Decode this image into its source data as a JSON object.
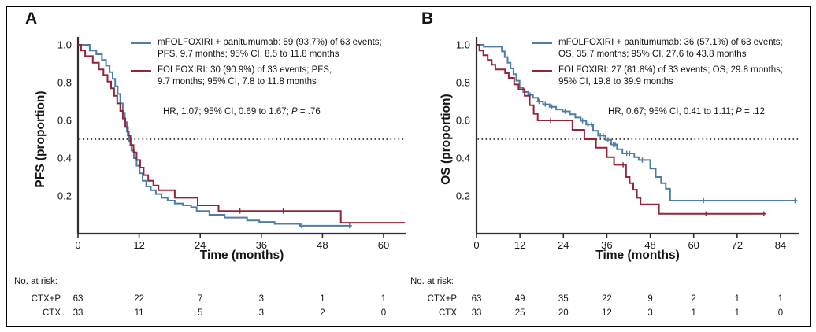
{
  "chart_data": [
    {
      "type": "line",
      "subtype": "kaplan-meier-step",
      "panel_label": "A",
      "xlabel": "Time (months)",
      "ylabel": "PFS (proportion)",
      "xticks": [
        0,
        12,
        24,
        36,
        48,
        60
      ],
      "yticks": [
        "1.0",
        "0.8",
        "0.6",
        "0.4",
        "0.2"
      ],
      "ytick_values": [
        1.0,
        0.8,
        0.6,
        0.4,
        0.2
      ],
      "xlim": [
        0,
        64
      ],
      "ylim": [
        0,
        1.0
      ],
      "grid": false,
      "reference_line_y": 0.5,
      "legend_position": "top-right-inside",
      "annotation": {
        "prefix": "HR, 1.07; 95% CI, 0.69 to 1.67; ",
        "italic": "P",
        "suffix": " = .76"
      },
      "series": [
        {
          "name": "mFOLFOXIRI + panitumumab",
          "color": "#4e7da6",
          "label_lines": [
            "mFOLFOXIRI + panitumumab: 59 (93.7%) of 63 events;",
            "PFS, 9.7 months; 95% CI, 8.5 to 11.8 months"
          ],
          "points": [
            [
              0,
              1.0
            ],
            [
              2.3,
              0.97
            ],
            [
              3.6,
              0.95
            ],
            [
              4.7,
              0.92
            ],
            [
              5.5,
              0.89
            ],
            [
              6.2,
              0.855
            ],
            [
              6.8,
              0.82
            ],
            [
              7.3,
              0.78
            ],
            [
              7.8,
              0.74
            ],
            [
              8.3,
              0.69
            ],
            [
              8.8,
              0.64
            ],
            [
              9.2,
              0.59
            ],
            [
              9.6,
              0.54
            ],
            [
              10.0,
              0.49
            ],
            [
              10.5,
              0.44
            ],
            [
              11.0,
              0.4
            ],
            [
              11.5,
              0.36
            ],
            [
              12.1,
              0.32
            ],
            [
              12.7,
              0.28
            ],
            [
              13.4,
              0.25
            ],
            [
              14.3,
              0.23
            ],
            [
              15.3,
              0.21
            ],
            [
              16.4,
              0.19
            ],
            [
              17.6,
              0.175
            ],
            [
              19.0,
              0.16
            ],
            [
              20.6,
              0.15
            ],
            [
              22.2,
              0.14
            ],
            [
              23.3,
              0.12
            ],
            [
              25.8,
              0.1
            ],
            [
              28.8,
              0.085
            ],
            [
              33.2,
              0.07
            ],
            [
              35.6,
              0.062
            ],
            [
              38.6,
              0.052
            ],
            [
              43.6,
              0.042
            ],
            [
              53.3,
              0.042
            ]
          ],
          "censors": [
            [
              43.9,
              0.042
            ],
            [
              53.3,
              0.042
            ]
          ]
        },
        {
          "name": "FOLFOXIRI",
          "color": "#91263a",
          "label_lines": [
            "FOLFOXIRI: 30 (90.9%) of 33 events; PFS,",
            "9.7 months; 95% CI, 7.8 to 11.8 months"
          ],
          "points": [
            [
              0,
              1.0
            ],
            [
              0.6,
              0.97
            ],
            [
              1.4,
              0.94
            ],
            [
              2.9,
              0.905
            ],
            [
              4.1,
              0.87
            ],
            [
              5.0,
              0.84
            ],
            [
              5.8,
              0.805
            ],
            [
              6.5,
              0.77
            ],
            [
              7.1,
              0.73
            ],
            [
              7.7,
              0.69
            ],
            [
              8.3,
              0.65
            ],
            [
              8.8,
              0.61
            ],
            [
              9.3,
              0.565
            ],
            [
              9.8,
              0.52
            ],
            [
              10.3,
              0.47
            ],
            [
              10.9,
              0.43
            ],
            [
              11.5,
              0.39
            ],
            [
              12.2,
              0.35
            ],
            [
              12.9,
              0.31
            ],
            [
              13.8,
              0.28
            ],
            [
              14.8,
              0.255
            ],
            [
              15.8,
              0.23
            ],
            [
              19.0,
              0.19
            ],
            [
              23.5,
              0.15
            ],
            [
              27.6,
              0.12
            ],
            [
              51.6,
              0.058
            ],
            [
              64.2,
              0.058
            ]
          ],
          "censors": [
            [
              31.8,
              0.12
            ],
            [
              40.3,
              0.12
            ]
          ]
        }
      ],
      "at_risk": {
        "title": "No. at risk:",
        "rows": [
          {
            "label": "CTX+P",
            "values": [
              "63",
              "22",
              "7",
              "3",
              "1",
              "1"
            ]
          },
          {
            "label": "CTX",
            "values": [
              "33",
              "11",
              "5",
              "3",
              "2",
              "0"
            ]
          }
        ]
      }
    },
    {
      "type": "line",
      "subtype": "kaplan-meier-step",
      "panel_label": "B",
      "xlabel": "Time (months)",
      "ylabel": "OS (proportion)",
      "xticks": [
        0,
        12,
        24,
        36,
        48,
        60,
        72,
        84
      ],
      "yticks": [
        "1.0",
        "0.8",
        "0.6",
        "0.4",
        "0.2"
      ],
      "ytick_values": [
        1.0,
        0.8,
        0.6,
        0.4,
        0.2
      ],
      "xlim": [
        0,
        89
      ],
      "ylim": [
        0,
        1.0
      ],
      "grid": false,
      "reference_line_y": 0.5,
      "legend_position": "top-right-inside",
      "annotation": {
        "prefix": "HR, 0.67; 95% CI, 0.41 to 1.11; ",
        "italic": "P",
        "suffix": " = .12"
      },
      "series": [
        {
          "name": "mFOLFOXIRI + panitumumab",
          "color": "#4e7da6",
          "label_lines": [
            "mFOLFOXIRI + panitumumab: 36 (57.1%) of 63 events;",
            "OS, 35.7 months; 95% CI, 27.6 to 43.8 months"
          ],
          "points": [
            [
              0,
              1.0
            ],
            [
              2.0,
              0.99
            ],
            [
              7.0,
              0.965
            ],
            [
              7.8,
              0.935
            ],
            [
              8.6,
              0.905
            ],
            [
              9.4,
              0.875
            ],
            [
              10.2,
              0.845
            ],
            [
              11.0,
              0.81
            ],
            [
              11.9,
              0.775
            ],
            [
              12.9,
              0.75
            ],
            [
              14.3,
              0.735
            ],
            [
              15.6,
              0.72
            ],
            [
              17.0,
              0.7
            ],
            [
              18.4,
              0.685
            ],
            [
              20.2,
              0.672
            ],
            [
              22.0,
              0.658
            ],
            [
              23.8,
              0.648
            ],
            [
              25.8,
              0.632
            ],
            [
              27.3,
              0.615
            ],
            [
              28.8,
              0.598
            ],
            [
              30.3,
              0.578
            ],
            [
              32.2,
              0.545
            ],
            [
              33.6,
              0.52
            ],
            [
              35.6,
              0.497
            ],
            [
              37.2,
              0.473
            ],
            [
              38.8,
              0.447
            ],
            [
              40.3,
              0.425
            ],
            [
              43.6,
              0.405
            ],
            [
              44.8,
              0.39
            ],
            [
              48.0,
              0.345
            ],
            [
              49.5,
              0.3
            ],
            [
              51.0,
              0.268
            ],
            [
              52.3,
              0.238
            ],
            [
              53.5,
              0.175
            ],
            [
              88.3,
              0.175
            ]
          ],
          "censors": [
            [
              14.8,
              0.735
            ],
            [
              17.3,
              0.7
            ],
            [
              19.0,
              0.685
            ],
            [
              20.8,
              0.672
            ],
            [
              24.5,
              0.648
            ],
            [
              29.3,
              0.598
            ],
            [
              30.8,
              0.578
            ],
            [
              31.8,
              0.578
            ],
            [
              34.2,
              0.52
            ],
            [
              35.0,
              0.52
            ],
            [
              36.3,
              0.497
            ],
            [
              37.8,
              0.473
            ],
            [
              38.3,
              0.473
            ],
            [
              41.5,
              0.425
            ],
            [
              42.3,
              0.425
            ],
            [
              45.8,
              0.39
            ],
            [
              62.7,
              0.175
            ],
            [
              88.0,
              0.175
            ]
          ]
        },
        {
          "name": "FOLFOXIRI",
          "color": "#91263a",
          "label_lines": [
            "FOLFOXIRI: 27 (81.8%) of 33 events; OS, 29.8 months;",
            "95% CI, 19.8 to 39.9 months"
          ],
          "points": [
            [
              0,
              1.0
            ],
            [
              0.8,
              0.97
            ],
            [
              1.9,
              0.945
            ],
            [
              3.1,
              0.92
            ],
            [
              4.2,
              0.895
            ],
            [
              5.2,
              0.87
            ],
            [
              7.9,
              0.85
            ],
            [
              8.9,
              0.825
            ],
            [
              10.4,
              0.79
            ],
            [
              11.6,
              0.765
            ],
            [
              13.3,
              0.73
            ],
            [
              14.7,
              0.68
            ],
            [
              15.8,
              0.635
            ],
            [
              16.9,
              0.6
            ],
            [
              26.5,
              0.55
            ],
            [
              29.8,
              0.5
            ],
            [
              33.0,
              0.455
            ],
            [
              36.0,
              0.405
            ],
            [
              38.0,
              0.365
            ],
            [
              41.3,
              0.3
            ],
            [
              42.3,
              0.268
            ],
            [
              43.3,
              0.233
            ],
            [
              44.3,
              0.19
            ],
            [
              45.3,
              0.155
            ],
            [
              50.4,
              0.105
            ],
            [
              79.6,
              0.105
            ]
          ],
          "censors": [
            [
              20.5,
              0.6
            ],
            [
              40.5,
              0.365
            ],
            [
              63.4,
              0.105
            ],
            [
              79.4,
              0.105
            ]
          ]
        }
      ],
      "at_risk": {
        "title": "No. at risk:",
        "rows": [
          {
            "label": "CTX+P",
            "values": [
              "63",
              "49",
              "35",
              "22",
              "9",
              "2",
              "1",
              "1"
            ]
          },
          {
            "label": "CTX",
            "values": [
              "33",
              "25",
              "20",
              "12",
              "3",
              "1",
              "1",
              "0"
            ]
          }
        ]
      }
    }
  ]
}
